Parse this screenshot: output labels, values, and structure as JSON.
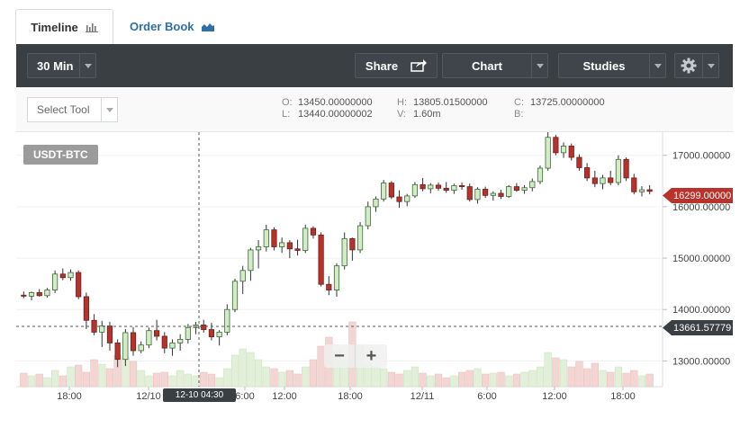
{
  "tabs": [
    {
      "label": "Timeline",
      "icon": "bar-chart-icon",
      "active": true
    },
    {
      "label": "Order Book",
      "icon": "area-chart-icon",
      "active": false
    }
  ],
  "toolbar": {
    "interval": "30 Min",
    "share": "Share",
    "chart": "Chart",
    "studies": "Studies"
  },
  "tool_select": "Select Tool",
  "ohlc": {
    "O": "13450.00000000",
    "L": "13440.00000002",
    "H": "13805.01500000",
    "V": "1.60m",
    "C": "13725.00000000",
    "B": ""
  },
  "pair": "USDT-BTC",
  "current_price": "16299.00000",
  "crosshair_price": "13661.57779",
  "crosshair_time": "12-10 04:30",
  "zoom": {
    "minus": "−",
    "plus": "+"
  },
  "colors": {
    "up": "#5a9f51",
    "up_fill": "#d3ecc7",
    "down": "#a8302a",
    "down_fill": "#b5332c",
    "toolbar": "#3a3f44"
  },
  "chart_data": {
    "type": "candlestick",
    "y_ticks": [
      "17000.00000",
      "16000.00000",
      "15000.00000",
      "14000.00000",
      "13000.00000"
    ],
    "ylim": [
      12500,
      17450
    ],
    "x_ticks": [
      "18:00",
      "12/10",
      "6:00",
      "12:00",
      "18:00",
      "12/11",
      "6:00",
      "12:00",
      "18:00"
    ],
    "ohlc": [
      [
        14280,
        14350,
        14220,
        14260
      ],
      [
        14260,
        14350,
        14180,
        14330
      ],
      [
        14330,
        14400,
        14250,
        14270
      ],
      [
        14270,
        14420,
        14230,
        14380
      ],
      [
        14380,
        14760,
        14320,
        14690
      ],
      [
        14690,
        14800,
        14570,
        14620
      ],
      [
        14620,
        14780,
        14560,
        14720
      ],
      [
        14720,
        14760,
        14200,
        14250
      ],
      [
        14250,
        14330,
        13620,
        13790
      ],
      [
        13790,
        13910,
        13500,
        13560
      ],
      [
        13560,
        13780,
        13270,
        13680
      ],
      [
        13680,
        13760,
        13200,
        13350
      ],
      [
        13350,
        13420,
        12880,
        13030
      ],
      [
        13030,
        13620,
        12900,
        13550
      ],
      [
        13550,
        13660,
        13100,
        13200
      ],
      [
        13200,
        13380,
        13150,
        13310
      ],
      [
        13310,
        13650,
        13250,
        13590
      ],
      [
        13590,
        13800,
        13400,
        13480
      ],
      [
        13480,
        13560,
        13150,
        13250
      ],
      [
        13250,
        13420,
        13100,
        13350
      ],
      [
        13350,
        13520,
        13200,
        13420
      ],
      [
        13420,
        13720,
        13340,
        13650
      ],
      [
        13650,
        13760,
        13520,
        13700
      ],
      [
        13700,
        13800,
        13550,
        13610
      ],
      [
        13610,
        13740,
        13400,
        13470
      ],
      [
        13470,
        13600,
        13300,
        13560
      ],
      [
        13560,
        14100,
        13500,
        14000
      ],
      [
        14000,
        14600,
        13950,
        14550
      ],
      [
        14550,
        14850,
        14300,
        14760
      ],
      [
        14760,
        15200,
        14560,
        15160
      ],
      [
        15160,
        15350,
        14800,
        15220
      ],
      [
        15220,
        15650,
        15130,
        15550
      ],
      [
        15550,
        15600,
        15150,
        15220
      ],
      [
        15220,
        15400,
        15100,
        15300
      ],
      [
        15300,
        15350,
        15000,
        15180
      ],
      [
        15180,
        15360,
        15050,
        15150
      ],
      [
        15150,
        15650,
        15100,
        15580
      ],
      [
        15580,
        15620,
        15380,
        15450
      ],
      [
        15450,
        15500,
        14450,
        14490
      ],
      [
        14490,
        14650,
        14280,
        14380
      ],
      [
        14380,
        14900,
        14250,
        14850
      ],
      [
        14850,
        15500,
        14780,
        15380
      ],
      [
        15380,
        15400,
        14950,
        15160
      ],
      [
        15160,
        15700,
        15100,
        15630
      ],
      [
        15630,
        16100,
        15560,
        16000
      ],
      [
        16000,
        16200,
        15900,
        16150
      ],
      [
        16150,
        16520,
        16100,
        16460
      ],
      [
        16460,
        16500,
        16150,
        16190
      ],
      [
        16190,
        16320,
        15980,
        16100
      ],
      [
        16100,
        16250,
        16010,
        16210
      ],
      [
        16210,
        16480,
        16170,
        16430
      ],
      [
        16430,
        16560,
        16300,
        16350
      ],
      [
        16350,
        16460,
        16260,
        16420
      ],
      [
        16420,
        16470,
        16310,
        16360
      ],
      [
        16360,
        16480,
        16270,
        16320
      ],
      [
        16320,
        16450,
        16250,
        16410
      ],
      [
        16410,
        16470,
        16330,
        16390
      ],
      [
        16390,
        16450,
        16100,
        16140
      ],
      [
        16140,
        16380,
        16060,
        16340
      ],
      [
        16340,
        16390,
        16170,
        16220
      ],
      [
        16220,
        16300,
        16120,
        16260
      ],
      [
        16260,
        16330,
        16150,
        16200
      ],
      [
        16200,
        16420,
        16170,
        16390
      ],
      [
        16390,
        16460,
        16290,
        16320
      ],
      [
        16320,
        16420,
        16250,
        16370
      ],
      [
        16370,
        16550,
        16300,
        16490
      ],
      [
        16490,
        16800,
        16440,
        16750
      ],
      [
        16750,
        17450,
        16700,
        17350
      ],
      [
        17350,
        17400,
        17000,
        17050
      ],
      [
        17050,
        17250,
        16950,
        17180
      ],
      [
        17180,
        17230,
        16900,
        16960
      ],
      [
        16960,
        17020,
        16700,
        16760
      ],
      [
        16760,
        16850,
        16500,
        16560
      ],
      [
        16560,
        16700,
        16380,
        16450
      ],
      [
        16450,
        16620,
        16340,
        16560
      ],
      [
        16560,
        16700,
        16420,
        16470
      ],
      [
        16470,
        17000,
        16420,
        16920
      ],
      [
        16920,
        16960,
        16500,
        16560
      ],
      [
        16560,
        16640,
        16240,
        16290
      ],
      [
        16290,
        16400,
        16200,
        16330
      ],
      [
        16330,
        16420,
        16240,
        16299
      ]
    ],
    "volume": [
      0.15,
      0.12,
      0.14,
      0.1,
      0.18,
      0.12,
      0.22,
      0.24,
      0.16,
      0.3,
      0.25,
      0.2,
      0.35,
      0.32,
      0.28,
      0.18,
      0.12,
      0.15,
      0.16,
      0.12,
      0.18,
      0.14,
      0.12,
      0.16,
      0.14,
      0.1,
      0.2,
      0.35,
      0.42,
      0.38,
      0.3,
      0.22,
      0.2,
      0.16,
      0.18,
      0.14,
      0.22,
      0.3,
      0.45,
      0.55,
      0.4,
      0.3,
      0.72,
      0.46,
      0.26,
      0.22,
      0.2,
      0.16,
      0.14,
      0.18,
      0.22,
      0.15,
      0.12,
      0.14,
      0.1,
      0.12,
      0.16,
      0.18,
      0.2,
      0.14,
      0.15,
      0.16,
      0.12,
      0.14,
      0.16,
      0.18,
      0.22,
      0.38,
      0.32,
      0.3,
      0.22,
      0.28,
      0.2,
      0.26,
      0.18,
      0.16,
      0.22,
      0.15,
      0.18,
      0.12,
      0.14
    ]
  }
}
